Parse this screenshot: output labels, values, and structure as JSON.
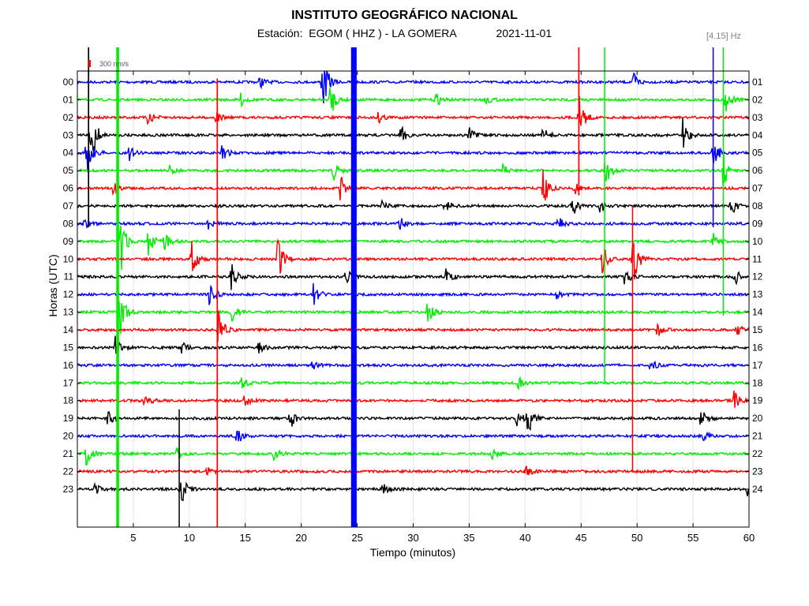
{
  "header": {
    "title": "INSTITUTO GEOGRÁFICO NACIONAL",
    "station_prefix": "Estación:",
    "station": "EGOM ( HHZ ) - LA GOMERA",
    "date": "2021-11-01",
    "filter": "[4.15] Hz",
    "scale_label": "300 nm/s"
  },
  "chart_data": {
    "type": "line",
    "title": "INSTITUTO GEOGRÁFICO NACIONAL",
    "xlabel": "Tiempo (minutos)",
    "ylabel": "Horas (UTC)",
    "xlim": [
      0,
      60
    ],
    "xticks": [
      5,
      10,
      15,
      20,
      25,
      30,
      35,
      40,
      45,
      50,
      55,
      60
    ],
    "grid": true,
    "left_hour_labels": [
      "00",
      "01",
      "02",
      "03",
      "04",
      "05",
      "06",
      "07",
      "08",
      "09",
      "10",
      "11",
      "12",
      "13",
      "14",
      "15",
      "16",
      "17",
      "18",
      "19",
      "20",
      "21",
      "22",
      "23"
    ],
    "right_hour_labels": [
      "01",
      "02",
      "03",
      "04",
      "05",
      "06",
      "07",
      "08",
      "09",
      "10",
      "11",
      "12",
      "13",
      "14",
      "15",
      "16",
      "17",
      "18",
      "19",
      "20",
      "21",
      "22",
      "23",
      "24"
    ],
    "trace_colors": [
      "#0000ff",
      "#00ee00",
      "#ff0000",
      "#000000"
    ],
    "events": [
      {
        "hour": 0,
        "minute": 16.3,
        "amp": 0.4
      },
      {
        "hour": 0,
        "minute": 21.9,
        "amp": 2.2
      },
      {
        "hour": 0,
        "minute": 49.7,
        "amp": 0.6
      },
      {
        "hour": 1,
        "minute": 14.6,
        "amp": 0.4
      },
      {
        "hour": 1,
        "minute": 22.6,
        "amp": 1.2
      },
      {
        "hour": 1,
        "minute": 32.0,
        "amp": 0.5
      },
      {
        "hour": 1,
        "minute": 36.5,
        "amp": 0.3
      },
      {
        "hour": 1,
        "minute": 57.9,
        "amp": 1.0
      },
      {
        "hour": 2,
        "minute": 44.8,
        "amp": 1.6
      },
      {
        "hour": 2,
        "minute": 6.3,
        "amp": 0.5
      },
      {
        "hour": 2,
        "minute": 12.4,
        "amp": 0.4
      },
      {
        "hour": 2,
        "minute": 26.9,
        "amp": 0.4
      },
      {
        "hour": 3,
        "minute": 1.2,
        "amp": 2.6
      },
      {
        "hour": 3,
        "minute": 28.9,
        "amp": 0.6
      },
      {
        "hour": 3,
        "minute": 35.0,
        "amp": 0.5
      },
      {
        "hour": 3,
        "minute": 41.6,
        "amp": 0.5
      },
      {
        "hour": 3,
        "minute": 54.1,
        "amp": 1.2
      },
      {
        "hour": 4,
        "minute": 0.8,
        "amp": 1.6
      },
      {
        "hour": 4,
        "minute": 4.6,
        "amp": 0.5
      },
      {
        "hour": 4,
        "minute": 12.9,
        "amp": 0.7
      },
      {
        "hour": 4,
        "minute": 56.8,
        "amp": 1.0
      },
      {
        "hour": 5,
        "minute": 8.2,
        "amp": 0.4
      },
      {
        "hour": 5,
        "minute": 22.8,
        "amp": 0.9
      },
      {
        "hour": 5,
        "minute": 38.0,
        "amp": 0.4
      },
      {
        "hour": 5,
        "minute": 47.1,
        "amp": 1.2
      },
      {
        "hour": 5,
        "minute": 57.7,
        "amp": 1.2
      },
      {
        "hour": 6,
        "minute": 3.2,
        "amp": 0.4
      },
      {
        "hour": 6,
        "minute": 23.5,
        "amp": 0.9
      },
      {
        "hour": 6,
        "minute": 41.6,
        "amp": 1.3
      },
      {
        "hour": 6,
        "minute": 44.4,
        "amp": 0.4
      },
      {
        "hour": 7,
        "minute": 27.2,
        "amp": 0.4
      },
      {
        "hour": 7,
        "minute": 32.8,
        "amp": 0.6
      },
      {
        "hour": 7,
        "minute": 44.2,
        "amp": 0.7
      },
      {
        "hour": 7,
        "minute": 46.7,
        "amp": 0.5
      },
      {
        "hour": 7,
        "minute": 58.4,
        "amp": 0.6
      },
      {
        "hour": 8,
        "minute": 0.6,
        "amp": 0.3
      },
      {
        "hour": 8,
        "minute": 11.7,
        "amp": 0.4
      },
      {
        "hour": 8,
        "minute": 28.7,
        "amp": 0.6
      },
      {
        "hour": 8,
        "minute": 42.9,
        "amp": 0.5
      },
      {
        "hour": 9,
        "minute": 3.9,
        "amp": 2.3
      },
      {
        "hour": 9,
        "minute": 6.3,
        "amp": 1.1
      },
      {
        "hour": 9,
        "minute": 7.8,
        "amp": 0.6
      },
      {
        "hour": 9,
        "minute": 56.8,
        "amp": 0.6
      },
      {
        "hour": 10,
        "minute": 10.2,
        "amp": 1.2
      },
      {
        "hour": 10,
        "minute": 17.9,
        "amp": 1.5
      },
      {
        "hour": 10,
        "minute": 46.9,
        "amp": 1.0
      },
      {
        "hour": 10,
        "minute": 49.6,
        "amp": 2.0
      },
      {
        "hour": 11,
        "minute": 13.7,
        "amp": 1.0
      },
      {
        "hour": 11,
        "minute": 24.0,
        "amp": 0.6
      },
      {
        "hour": 11,
        "minute": 32.9,
        "amp": 0.6
      },
      {
        "hour": 11,
        "minute": 48.9,
        "amp": 0.6
      },
      {
        "hour": 11,
        "minute": 58.7,
        "amp": 0.6
      },
      {
        "hour": 12,
        "minute": 11.8,
        "amp": 1.0
      },
      {
        "hour": 12,
        "minute": 21.1,
        "amp": 0.8
      },
      {
        "hour": 12,
        "minute": 42.7,
        "amp": 0.3
      },
      {
        "hour": 13,
        "minute": 3.8,
        "amp": 1.6
      },
      {
        "hour": 13,
        "minute": 31.3,
        "amp": 1.0
      },
      {
        "hour": 13,
        "minute": 13.8,
        "amp": 0.6
      },
      {
        "hour": 14,
        "minute": 12.6,
        "amp": 1.4
      },
      {
        "hour": 14,
        "minute": 51.8,
        "amp": 0.5
      },
      {
        "hour": 14,
        "minute": 58.9,
        "amp": 0.4
      },
      {
        "hour": 15,
        "minute": 3.4,
        "amp": 0.8
      },
      {
        "hour": 15,
        "minute": 9.3,
        "amp": 0.4
      },
      {
        "hour": 15,
        "minute": 16.2,
        "amp": 0.4
      },
      {
        "hour": 16,
        "minute": 21.0,
        "amp": 0.3
      },
      {
        "hour": 16,
        "minute": 51.2,
        "amp": 0.4
      },
      {
        "hour": 17,
        "minute": 14.6,
        "amp": 0.5
      },
      {
        "hour": 17,
        "minute": 39.4,
        "amp": 0.4
      },
      {
        "hour": 18,
        "minute": 6.0,
        "amp": 0.5
      },
      {
        "hour": 18,
        "minute": 14.9,
        "amp": 0.5
      },
      {
        "hour": 18,
        "minute": 58.7,
        "amp": 0.8
      },
      {
        "hour": 19,
        "minute": 2.7,
        "amp": 0.5
      },
      {
        "hour": 19,
        "minute": 19.0,
        "amp": 0.7
      },
      {
        "hour": 19,
        "minute": 39.2,
        "amp": 0.8
      },
      {
        "hour": 19,
        "minute": 40.2,
        "amp": 1.2
      },
      {
        "hour": 19,
        "minute": 55.7,
        "amp": 0.7
      },
      {
        "hour": 20,
        "minute": 14.2,
        "amp": 0.7
      },
      {
        "hour": 20,
        "minute": 55.8,
        "amp": 0.4
      },
      {
        "hour": 21,
        "minute": 0.8,
        "amp": 0.8
      },
      {
        "hour": 21,
        "minute": 8.9,
        "amp": 0.4
      },
      {
        "hour": 21,
        "minute": 17.6,
        "amp": 0.5
      },
      {
        "hour": 21,
        "minute": 37.0,
        "amp": 0.4
      },
      {
        "hour": 22,
        "minute": 40.1,
        "amp": 0.4
      },
      {
        "hour": 22,
        "minute": 11.6,
        "amp": 0.3
      },
      {
        "hour": 23,
        "minute": 1.5,
        "amp": 0.4
      },
      {
        "hour": 23,
        "minute": 9.2,
        "amp": 1.3
      },
      {
        "hour": 23,
        "minute": 27.3,
        "amp": 0.5
      },
      {
        "hour": 23,
        "minute": 59.9,
        "amp": 0.8
      }
    ],
    "vertical_bursts": [
      {
        "minute": 24.7,
        "from_hour": 0,
        "to_hour": 23.9,
        "color": "#0000ff",
        "width_minutes": 0.5
      },
      {
        "minute": 3.6,
        "from_hour": 0,
        "to_hour": 23.9,
        "color": "#00ee00",
        "width_minutes": 0.25
      },
      {
        "minute": 12.5,
        "from_hour": 1.8,
        "to_hour": 23.9,
        "color": "#ff0000",
        "width_minutes": 0.12
      },
      {
        "minute": 9.1,
        "from_hour": 20.5,
        "to_hour": 23.9,
        "color": "#000000",
        "width_minutes": 0.1
      },
      {
        "minute": 1.0,
        "from_hour": 0,
        "to_hour": 6.2,
        "color": "#000000",
        "width_minutes": 0.12
      },
      {
        "minute": 44.8,
        "from_hour": 0,
        "to_hour": 4.4,
        "color": "#ff0000",
        "width_minutes": 0.12
      },
      {
        "minute": 47.1,
        "from_hour": 0,
        "to_hour": 15.0,
        "color": "#00ee00",
        "width_minutes": 0.1
      },
      {
        "minute": 57.7,
        "from_hour": 0,
        "to_hour": 11.2,
        "color": "#00ee00",
        "width_minutes": 0.1
      },
      {
        "minute": 56.8,
        "from_hour": 0,
        "to_hour": 6.2,
        "color": "#0000ff",
        "width_minutes": 0.1
      },
      {
        "minute": 49.6,
        "from_hour": 9.0,
        "to_hour": 20.0,
        "color": "#ff0000",
        "width_minutes": 0.1
      }
    ]
  }
}
